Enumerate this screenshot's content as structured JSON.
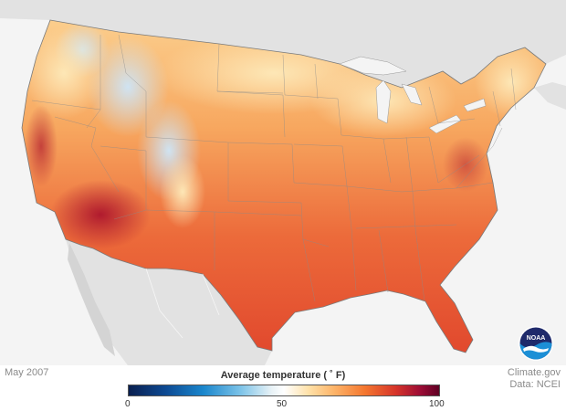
{
  "map": {
    "date_label": "May 2007",
    "legend": {
      "title": "Average temperature ( ˚ F)",
      "min_label": "0",
      "mid_label": "50",
      "max_label": "100",
      "scale_min": 0,
      "scale_max": 100
    },
    "credit": {
      "source": "Climate.gov",
      "data": "Data: NCEI"
    },
    "logo_text": "NOAA",
    "colors": {
      "ocean": "#f4f4f4",
      "land_outside": "#e0e0e0",
      "cool": "#cfe3f2",
      "mild": "#fde0a6",
      "warm": "#f6a15a",
      "hot": "#e4572e",
      "hottest": "#b01a2e"
    }
  }
}
